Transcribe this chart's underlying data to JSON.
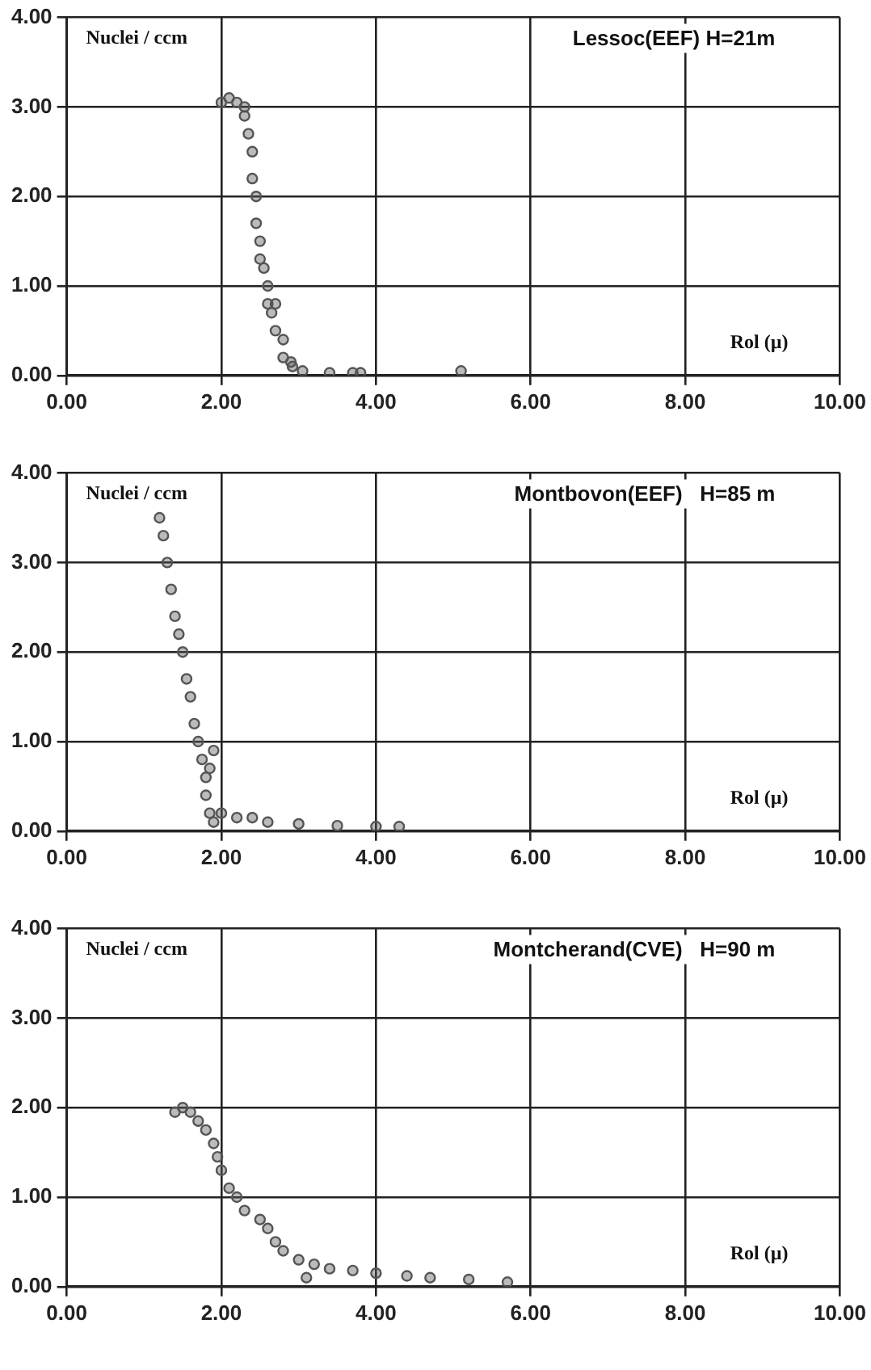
{
  "chart_data": [
    {
      "type": "scatter",
      "title": "Lessoc(EEF) H=21m",
      "xlabel": "Rol (µ)",
      "ylabel": "Nuclei / ccm",
      "marker": "circle",
      "grid": true,
      "legend": false,
      "xlim": [
        0,
        10
      ],
      "ylim": [
        0,
        4
      ],
      "xticks": [
        {
          "value": 0,
          "label": "0.00"
        },
        {
          "value": 2,
          "label": "2.00"
        },
        {
          "value": 4,
          "label": "4.00"
        },
        {
          "value": 6,
          "label": "6.00"
        },
        {
          "value": 8,
          "label": "8.00"
        },
        {
          "value": 10,
          "label": "10.00"
        }
      ],
      "yticks": [
        {
          "value": 0,
          "label": "0.00"
        },
        {
          "value": 1,
          "label": "1.00"
        },
        {
          "value": 2,
          "label": "2.00"
        },
        {
          "value": 3,
          "label": "3.00"
        },
        {
          "value": 4,
          "label": "4.00"
        }
      ],
      "series": [
        {
          "color": "#555555",
          "x": [
            2.0,
            2.1,
            2.2,
            2.3,
            2.3,
            2.35,
            2.4,
            2.4,
            2.45,
            2.45,
            2.5,
            2.5,
            2.55,
            2.6,
            2.6,
            2.65,
            2.7,
            2.7,
            2.8,
            2.8,
            2.9,
            2.92,
            3.05,
            3.4,
            3.7,
            3.8,
            5.1
          ],
          "values": [
            3.05,
            3.1,
            3.05,
            3.0,
            2.9,
            2.7,
            2.5,
            2.2,
            2.0,
            1.7,
            1.5,
            1.3,
            1.2,
            1.0,
            0.8,
            0.7,
            0.8,
            0.5,
            0.4,
            0.2,
            0.15,
            0.1,
            0.05,
            0.03,
            0.03,
            0.03,
            0.05
          ]
        }
      ]
    },
    {
      "type": "scatter",
      "title": "Montbovon(EEF)   H=85 m",
      "xlabel": "Rol (µ)",
      "ylabel": "Nuclei / ccm",
      "marker": "circle",
      "grid": true,
      "legend": false,
      "xlim": [
        0,
        10
      ],
      "ylim": [
        0,
        4
      ],
      "xticks": [
        {
          "value": 0,
          "label": "0.00"
        },
        {
          "value": 2,
          "label": "2.00"
        },
        {
          "value": 4,
          "label": "4.00"
        },
        {
          "value": 6,
          "label": "6.00"
        },
        {
          "value": 8,
          "label": "8.00"
        },
        {
          "value": 10,
          "label": "10.00"
        }
      ],
      "yticks": [
        {
          "value": 0,
          "label": "0.00"
        },
        {
          "value": 1,
          "label": "1.00"
        },
        {
          "value": 2,
          "label": "2.00"
        },
        {
          "value": 3,
          "label": "3.00"
        },
        {
          "value": 4,
          "label": "4.00"
        }
      ],
      "series": [
        {
          "color": "#555555",
          "x": [
            1.2,
            1.25,
            1.3,
            1.35,
            1.4,
            1.45,
            1.5,
            1.55,
            1.6,
            1.65,
            1.7,
            1.75,
            1.8,
            1.8,
            1.85,
            1.9,
            1.85,
            1.9,
            2.0,
            2.2,
            2.4,
            2.6,
            3.0,
            3.5,
            4.0,
            4.3
          ],
          "values": [
            3.5,
            3.3,
            3.0,
            2.7,
            2.4,
            2.2,
            2.0,
            1.7,
            1.5,
            1.2,
            1.0,
            0.8,
            0.6,
            0.4,
            0.7,
            0.9,
            0.2,
            0.1,
            0.2,
            0.15,
            0.15,
            0.1,
            0.08,
            0.06,
            0.05,
            0.05
          ]
        }
      ]
    },
    {
      "type": "scatter",
      "title": "Montcherand(CVE)   H=90 m",
      "xlabel": "Rol (µ)",
      "ylabel": "Nuclei / ccm",
      "marker": "circle",
      "grid": true,
      "legend": false,
      "xlim": [
        0,
        10
      ],
      "ylim": [
        0,
        4
      ],
      "xticks": [
        {
          "value": 0,
          "label": "0.00"
        },
        {
          "value": 2,
          "label": "2.00"
        },
        {
          "value": 4,
          "label": "4.00"
        },
        {
          "value": 6,
          "label": "6.00"
        },
        {
          "value": 8,
          "label": "8.00"
        },
        {
          "value": 10,
          "label": "10.00"
        }
      ],
      "yticks": [
        {
          "value": 0,
          "label": "0.00"
        },
        {
          "value": 1,
          "label": "1.00"
        },
        {
          "value": 2,
          "label": "2.00"
        },
        {
          "value": 3,
          "label": "3.00"
        },
        {
          "value": 4,
          "label": "4.00"
        }
      ],
      "series": [
        {
          "color": "#555555",
          "x": [
            1.4,
            1.5,
            1.6,
            1.7,
            1.8,
            1.9,
            1.95,
            2.0,
            2.1,
            2.2,
            2.3,
            2.5,
            2.6,
            2.7,
            2.8,
            3.0,
            3.1,
            3.2,
            3.4,
            3.7,
            4.0,
            4.4,
            4.7,
            5.2,
            5.7
          ],
          "values": [
            1.95,
            2.0,
            1.95,
            1.85,
            1.75,
            1.6,
            1.45,
            1.3,
            1.1,
            1.0,
            0.85,
            0.75,
            0.65,
            0.5,
            0.4,
            0.3,
            0.1,
            0.25,
            0.2,
            0.18,
            0.15,
            0.12,
            0.1,
            0.08,
            0.05
          ]
        }
      ]
    }
  ]
}
